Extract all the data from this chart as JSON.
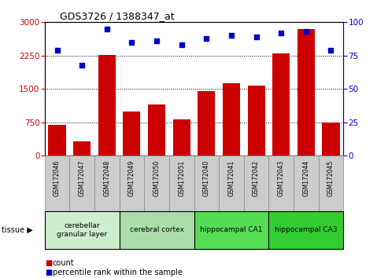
{
  "title": "GDS3726 / 1388347_at",
  "categories": [
    "GSM172046",
    "GSM172047",
    "GSM172048",
    "GSM172049",
    "GSM172050",
    "GSM172051",
    "GSM172040",
    "GSM172041",
    "GSM172042",
    "GSM172043",
    "GSM172044",
    "GSM172045"
  ],
  "bar_values": [
    700,
    330,
    2270,
    1000,
    1150,
    820,
    1460,
    1630,
    1570,
    2300,
    2850,
    750
  ],
  "dot_values": [
    79,
    68,
    95,
    85,
    86,
    83,
    88,
    90,
    89,
    92,
    93,
    79
  ],
  "bar_color": "#cc0000",
  "dot_color": "#0000cc",
  "left_ylim": [
    0,
    3000
  ],
  "right_ylim": [
    0,
    100
  ],
  "left_yticks": [
    0,
    750,
    1500,
    2250,
    3000
  ],
  "right_yticks": [
    0,
    25,
    50,
    75,
    100
  ],
  "tissue_groups": [
    {
      "label": "cerebellar\ngranular layer",
      "start": 0,
      "end": 3,
      "color": "#cceecc"
    },
    {
      "label": "cerebral cortex",
      "start": 3,
      "end": 6,
      "color": "#aaddaa"
    },
    {
      "label": "hippocampal CA1",
      "start": 6,
      "end": 9,
      "color": "#55dd55"
    },
    {
      "label": "hippocampal CA3",
      "start": 9,
      "end": 12,
      "color": "#33cc33"
    }
  ],
  "tissue_label": "tissue",
  "legend_count": "count",
  "legend_pct": "percentile rank within the sample",
  "tick_area_color": "#cccccc",
  "tick_border_color": "#888888"
}
